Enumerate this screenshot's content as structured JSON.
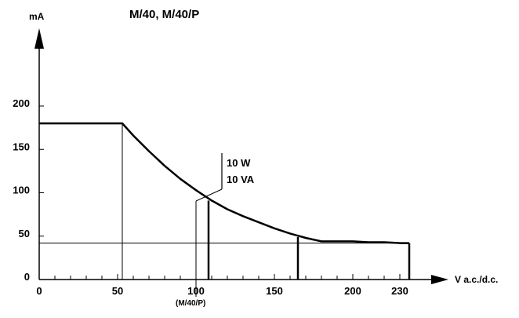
{
  "chart_data": {
    "type": "line",
    "title": "M/40, M/40/P",
    "ylabel": "mA",
    "xlabel": "V a.c./d.c.",
    "xlim": [
      0,
      240
    ],
    "ylim": [
      0,
      200
    ],
    "x_ticks": [
      {
        "value": 0,
        "label": "0"
      },
      {
        "value": 50,
        "label": "50"
      },
      {
        "value": 100,
        "label": "100"
      },
      {
        "value": 150,
        "label": "150"
      },
      {
        "value": 200,
        "label": "200"
      },
      {
        "value": 230,
        "label": "230"
      }
    ],
    "x_minor_step": 10,
    "y_ticks": [
      {
        "value": 0,
        "label": "0"
      },
      {
        "value": 50,
        "label": "50"
      },
      {
        "value": 100,
        "label": "100"
      },
      {
        "value": 150,
        "label": "150"
      },
      {
        "value": 200,
        "label": "200"
      }
    ],
    "series": [
      {
        "values_x": [
          0,
          10,
          20,
          30,
          40,
          50,
          53,
          60,
          70,
          80,
          90,
          100,
          110,
          120,
          130,
          140,
          150,
          160,
          170,
          180,
          190,
          200,
          210,
          220,
          230,
          236
        ],
        "values_y": [
          180,
          180,
          180,
          180,
          180,
          180,
          180,
          166,
          148,
          131,
          116,
          103,
          91,
          81,
          73,
          66,
          59,
          53,
          48,
          44,
          44,
          44,
          43,
          43,
          42,
          42
        ],
        "stroke": "bold"
      }
    ],
    "vertical_lines": [
      {
        "x": 53,
        "y_to": 180,
        "weight": "thin"
      },
      {
        "x": 108,
        "y_to": 91,
        "weight": "bold"
      },
      {
        "x": 165,
        "y_to": 49,
        "weight": "bold"
      },
      {
        "x": 236,
        "y_to": 42,
        "weight": "bold"
      }
    ],
    "reference_lines": [
      {
        "y": 42,
        "x_from": 0,
        "x_to": 236,
        "weight": "thin"
      }
    ],
    "annotations": {
      "power_label_1": "10 W",
      "power_label_2": "10 VA",
      "below_axis_label": "(M/40/P)",
      "leader_line_x": 100
    },
    "grid": false,
    "colors": {
      "ink": "#000000",
      "background": "#ffffff"
    }
  }
}
